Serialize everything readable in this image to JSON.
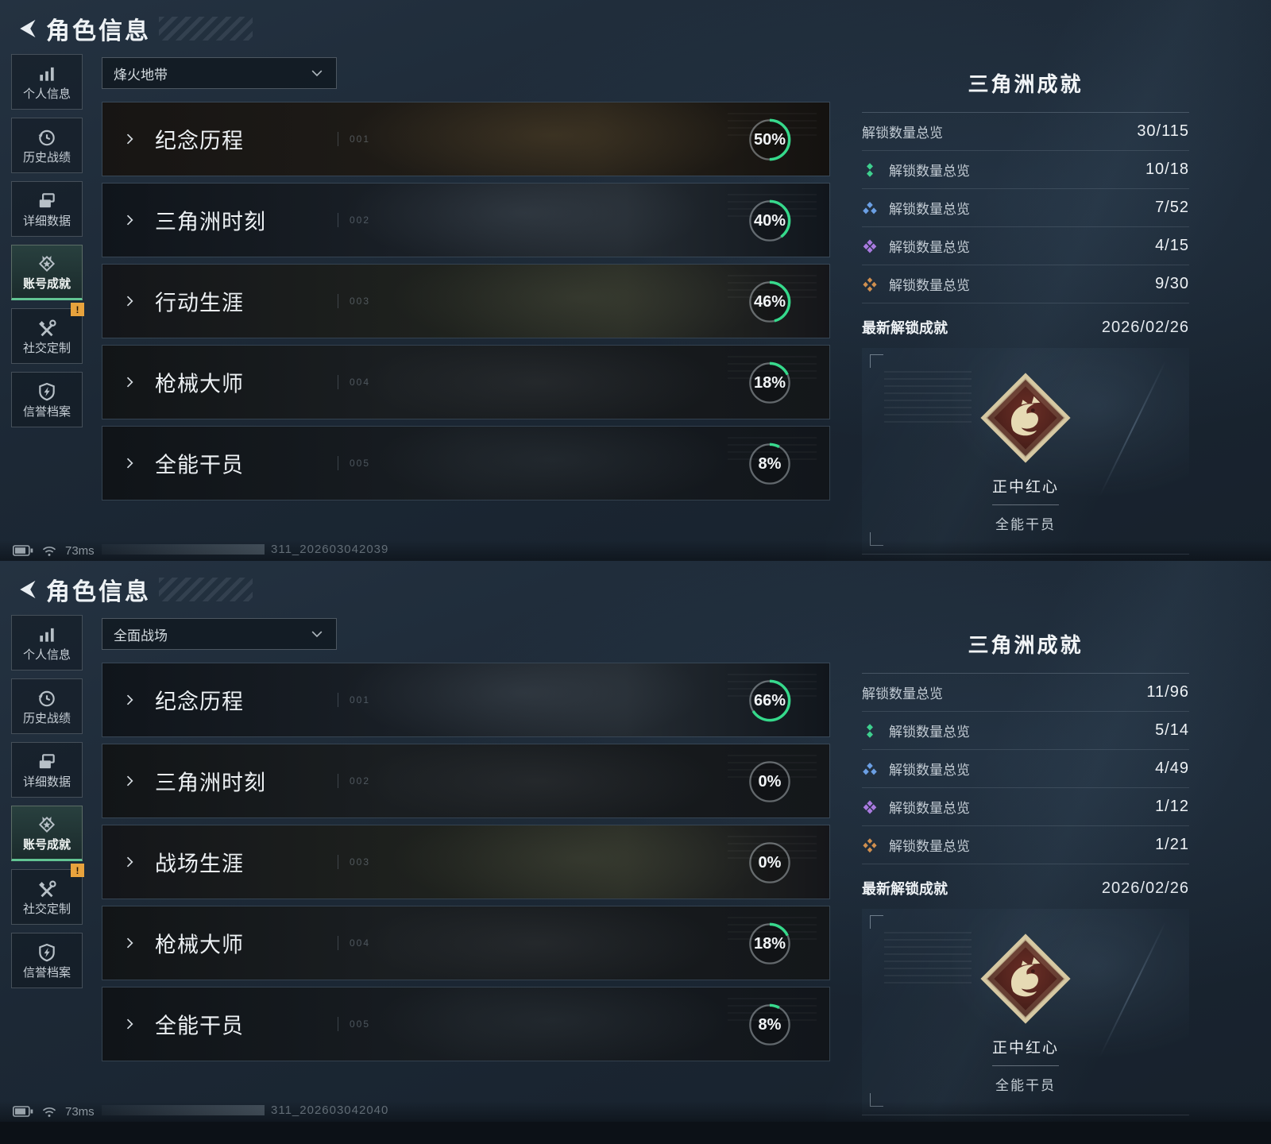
{
  "colors": {
    "accent_green": "#35d98b",
    "underline_green": "#62c493",
    "tier_green": "#3ecf8e",
    "tier_blue": "#6b9fe4",
    "tier_purple": "#a97ae0",
    "tier_orange": "#d08f4f",
    "warning_yellow": "#e8a33d",
    "badge_trim": "#d6c8a2"
  },
  "sidebar": {
    "alert_badge": "!",
    "items": [
      {
        "label": "个人信息",
        "icon": "bar-chart"
      },
      {
        "label": "历史战绩",
        "icon": "history-clock"
      },
      {
        "label": "详细数据",
        "icon": "data-files"
      },
      {
        "label": "账号成就",
        "icon": "achievement-medal",
        "selected": true
      },
      {
        "label": "社交定制",
        "icon": "tools",
        "alert": true
      },
      {
        "label": "信誉档案",
        "icon": "reputation-shield"
      }
    ]
  },
  "screens": [
    {
      "header": {
        "title": "角色信息"
      },
      "dropdown": {
        "value": "烽火地带"
      },
      "rows": [
        {
          "title": "纪念历程",
          "num": "001",
          "percent": 50,
          "percent_label": "50%"
        },
        {
          "title": "三角洲时刻",
          "num": "002",
          "percent": 40,
          "percent_label": "40%"
        },
        {
          "title": "行动生涯",
          "num": "003",
          "percent": 46,
          "percent_label": "46%"
        },
        {
          "title": "枪械大师",
          "num": "004",
          "percent": 18,
          "percent_label": "18%"
        },
        {
          "title": "全能干员",
          "num": "005",
          "percent": 8,
          "percent_label": "8%"
        }
      ],
      "panel": {
        "title": "三角洲成就",
        "stats": [
          {
            "label": "解锁数量总览",
            "value": "30/115"
          },
          {
            "label": "解锁数量总览",
            "value": "10/18",
            "icon": "tier-green"
          },
          {
            "label": "解锁数量总览",
            "value": "7/52",
            "icon": "tier-blue"
          },
          {
            "label": "解锁数量总览",
            "value": "4/15",
            "icon": "tier-purple"
          },
          {
            "label": "解锁数量总览",
            "value": "9/30",
            "icon": "tier-orange"
          }
        ],
        "latest_label": "最新解锁成就",
        "latest_date": "2026/02/26",
        "badge": {
          "name": "正中红心",
          "category": "全能干员"
        }
      },
      "status": {
        "ping": "73ms",
        "session": "311_202603042039"
      }
    },
    {
      "header": {
        "title": "角色信息"
      },
      "dropdown": {
        "value": "全面战场"
      },
      "rows": [
        {
          "title": "纪念历程",
          "num": "001",
          "percent": 66,
          "percent_label": "66%"
        },
        {
          "title": "三角洲时刻",
          "num": "002",
          "percent": 0,
          "percent_label": "0%"
        },
        {
          "title": "战场生涯",
          "num": "003",
          "percent": 0,
          "percent_label": "0%"
        },
        {
          "title": "枪械大师",
          "num": "004",
          "percent": 18,
          "percent_label": "18%"
        },
        {
          "title": "全能干员",
          "num": "005",
          "percent": 8,
          "percent_label": "8%"
        }
      ],
      "panel": {
        "title": "三角洲成就",
        "stats": [
          {
            "label": "解锁数量总览",
            "value": "11/96"
          },
          {
            "label": "解锁数量总览",
            "value": "5/14",
            "icon": "tier-green"
          },
          {
            "label": "解锁数量总览",
            "value": "4/49",
            "icon": "tier-blue"
          },
          {
            "label": "解锁数量总览",
            "value": "1/12",
            "icon": "tier-purple"
          },
          {
            "label": "解锁数量总览",
            "value": "1/21",
            "icon": "tier-orange"
          }
        ],
        "latest_label": "最新解锁成就",
        "latest_date": "2026/02/26",
        "badge": {
          "name": "正中红心",
          "category": "全能干员"
        }
      },
      "status": {
        "ping": "73ms",
        "session": "311_202603042040"
      }
    }
  ]
}
